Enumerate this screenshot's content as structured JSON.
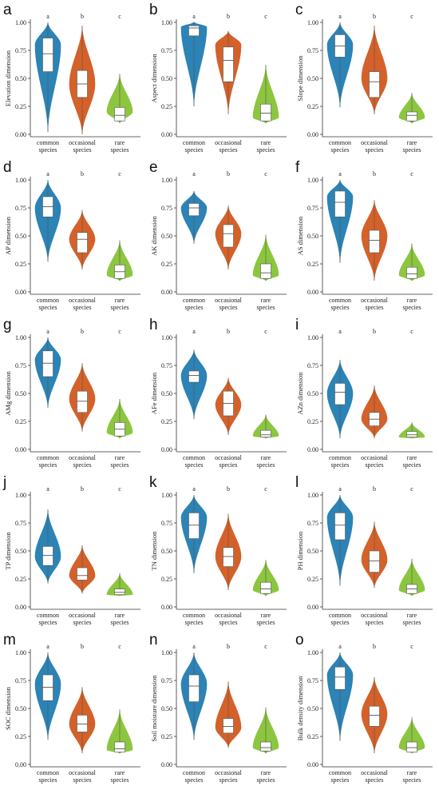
{
  "colors": {
    "common": "#2b83b6",
    "occasional": "#d4612a",
    "rare": "#8cc63f"
  },
  "categories": [
    [
      "common",
      "species"
    ],
    [
      "occasional",
      "species"
    ],
    [
      "rare",
      "species"
    ]
  ],
  "chart_data": [
    {
      "type": "violin",
      "panel": "a",
      "ylabel": "Elevation dimension",
      "yticks": [
        "0.00",
        "0.25",
        "0.50",
        "0.75",
        "1.00"
      ],
      "ylim": [
        0,
        1
      ],
      "significance": [
        "a",
        "b",
        "c"
      ],
      "series": [
        {
          "min": 0.02,
          "q1": 0.56,
          "median": 0.72,
          "q3": 0.86,
          "max": 1.0,
          "mode": 0.8
        },
        {
          "min": 0.0,
          "q1": 0.33,
          "median": 0.45,
          "q3": 0.57,
          "max": 0.97,
          "mode": 0.45
        },
        {
          "min": 0.1,
          "q1": 0.12,
          "median": 0.17,
          "q3": 0.24,
          "max": 0.54,
          "mode": 0.2
        }
      ]
    },
    {
      "type": "violin",
      "panel": "b",
      "ylabel": "Aspect dimension",
      "yticks": [
        "0.00",
        "0.25",
        "0.50",
        "0.75",
        "1.00"
      ],
      "ylim": [
        0,
        1
      ],
      "significance": [
        "a",
        "b",
        "c"
      ],
      "series": [
        {
          "min": 0.25,
          "q1": 0.88,
          "median": 0.95,
          "q3": 0.97,
          "max": 1.0,
          "mode": 0.96
        },
        {
          "min": 0.18,
          "q1": 0.47,
          "median": 0.66,
          "q3": 0.78,
          "max": 0.92,
          "mode": 0.8
        },
        {
          "min": 0.1,
          "q1": 0.12,
          "median": 0.19,
          "q3": 0.27,
          "max": 0.62,
          "mode": 0.15
        }
      ]
    },
    {
      "type": "violin",
      "panel": "c",
      "ylabel": "Slope dimension",
      "yticks": [
        "0.00",
        "0.25",
        "0.50",
        "0.75",
        "1.00"
      ],
      "ylim": [
        0,
        1
      ],
      "significance": [
        "a",
        "b",
        "c"
      ],
      "series": [
        {
          "min": 0.24,
          "q1": 0.69,
          "median": 0.79,
          "q3": 0.89,
          "max": 1.0,
          "mode": 0.8
        },
        {
          "min": 0.18,
          "q1": 0.33,
          "median": 0.47,
          "q3": 0.56,
          "max": 0.97,
          "mode": 0.5
        },
        {
          "min": 0.1,
          "q1": 0.12,
          "median": 0.17,
          "q3": 0.2,
          "max": 0.37,
          "mode": 0.15
        }
      ]
    },
    {
      "type": "violin",
      "panel": "d",
      "ylabel": "AP dimension",
      "yticks": [
        "0.00",
        "0.25",
        "0.50",
        "0.75",
        "1.00"
      ],
      "ylim": [
        0,
        1
      ],
      "significance": [
        "a",
        "b",
        "c"
      ],
      "series": [
        {
          "min": 0.27,
          "q1": 0.67,
          "median": 0.76,
          "q3": 0.85,
          "max": 1.0,
          "mode": 0.75
        },
        {
          "min": 0.2,
          "q1": 0.35,
          "median": 0.47,
          "q3": 0.53,
          "max": 0.73,
          "mode": 0.47
        },
        {
          "min": 0.1,
          "q1": 0.12,
          "median": 0.18,
          "q3": 0.24,
          "max": 0.46,
          "mode": 0.15
        }
      ]
    },
    {
      "type": "violin",
      "panel": "e",
      "ylabel": "AK dimension",
      "yticks": [
        "0.00",
        "0.25",
        "0.50",
        "0.75",
        "1.00"
      ],
      "ylim": [
        0,
        1
      ],
      "significance": [
        "a",
        "b",
        "c"
      ],
      "series": [
        {
          "min": 0.43,
          "q1": 0.68,
          "median": 0.75,
          "q3": 0.79,
          "max": 0.9,
          "mode": 0.75
        },
        {
          "min": 0.2,
          "q1": 0.4,
          "median": 0.52,
          "q3": 0.6,
          "max": 0.77,
          "mode": 0.52
        },
        {
          "min": 0.1,
          "q1": 0.12,
          "median": 0.17,
          "q3": 0.25,
          "max": 0.51,
          "mode": 0.15
        }
      ]
    },
    {
      "type": "violin",
      "panel": "f",
      "ylabel": "AS dimension",
      "yticks": [
        "0.00",
        "0.25",
        "0.50",
        "0.75",
        "1.00"
      ],
      "ylim": [
        0,
        1
      ],
      "significance": [
        "a",
        "b",
        "c"
      ],
      "series": [
        {
          "min": 0.26,
          "q1": 0.67,
          "median": 0.8,
          "q3": 0.9,
          "max": 1.0,
          "mode": 0.85
        },
        {
          "min": 0.1,
          "q1": 0.35,
          "median": 0.46,
          "q3": 0.55,
          "max": 0.82,
          "mode": 0.5
        },
        {
          "min": 0.1,
          "q1": 0.12,
          "median": 0.16,
          "q3": 0.22,
          "max": 0.43,
          "mode": 0.15
        }
      ]
    },
    {
      "type": "violin",
      "panel": "g",
      "ylabel": "AMg dimension",
      "yticks": [
        "0.00",
        "0.25",
        "0.50",
        "0.75",
        "1.00"
      ],
      "ylim": [
        0,
        1
      ],
      "significance": [
        "a",
        "b",
        "c"
      ],
      "series": [
        {
          "min": 0.37,
          "q1": 0.65,
          "median": 0.77,
          "q3": 0.88,
          "max": 1.0,
          "mode": 0.8
        },
        {
          "min": 0.16,
          "q1": 0.33,
          "median": 0.43,
          "q3": 0.52,
          "max": 0.77,
          "mode": 0.45
        },
        {
          "min": 0.1,
          "q1": 0.12,
          "median": 0.18,
          "q3": 0.24,
          "max": 0.45,
          "mode": 0.15
        }
      ]
    },
    {
      "type": "violin",
      "panel": "h",
      "ylabel": "AFe dimension",
      "yticks": [
        "0.00",
        "0.25",
        "0.50",
        "0.75",
        "1.00"
      ],
      "ylim": [
        0,
        1
      ],
      "significance": [
        "a",
        "b",
        "c"
      ],
      "series": [
        {
          "min": 0.27,
          "q1": 0.6,
          "median": 0.66,
          "q3": 0.7,
          "max": 0.89,
          "mode": 0.66
        },
        {
          "min": 0.13,
          "q1": 0.3,
          "median": 0.41,
          "q3": 0.52,
          "max": 0.64,
          "mode": 0.4
        },
        {
          "min": 0.1,
          "q1": 0.11,
          "median": 0.13,
          "q3": 0.17,
          "max": 0.31,
          "mode": 0.12
        }
      ]
    },
    {
      "type": "violin",
      "panel": "i",
      "ylabel": "AZn dimension",
      "yticks": [
        "0.00",
        "0.25",
        "0.50",
        "0.75",
        "1.00"
      ],
      "ylim": [
        0,
        1
      ],
      "significance": [
        "a",
        "b",
        "c"
      ],
      "series": [
        {
          "min": 0.1,
          "q1": 0.4,
          "median": 0.51,
          "q3": 0.59,
          "max": 0.8,
          "mode": 0.5
        },
        {
          "min": 0.1,
          "q1": 0.21,
          "median": 0.27,
          "q3": 0.33,
          "max": 0.57,
          "mode": 0.27
        },
        {
          "min": 0.1,
          "q1": 0.11,
          "median": 0.13,
          "q3": 0.16,
          "max": 0.24,
          "mode": 0.11
        }
      ]
    },
    {
      "type": "violin",
      "panel": "j",
      "ylabel": "TP dimension",
      "yticks": [
        "0.00",
        "0.25",
        "0.50",
        "0.75",
        "1.00"
      ],
      "ylim": [
        0,
        1
      ],
      "significance": [
        "a",
        "b",
        "c"
      ],
      "series": [
        {
          "min": 0.21,
          "q1": 0.37,
          "median": 0.46,
          "q3": 0.54,
          "max": 0.87,
          "mode": 0.45
        },
        {
          "min": 0.12,
          "q1": 0.24,
          "median": 0.28,
          "q3": 0.35,
          "max": 0.55,
          "mode": 0.28
        },
        {
          "min": 0.1,
          "q1": 0.11,
          "median": 0.13,
          "q3": 0.16,
          "max": 0.3,
          "mode": 0.11
        }
      ]
    },
    {
      "type": "violin",
      "panel": "k",
      "ylabel": "TN dimension",
      "yticks": [
        "0.00",
        "0.25",
        "0.50",
        "0.75",
        "1.00"
      ],
      "ylim": [
        0,
        1
      ],
      "significance": [
        "a",
        "b",
        "c"
      ],
      "series": [
        {
          "min": 0.3,
          "q1": 0.61,
          "median": 0.73,
          "q3": 0.84,
          "max": 1.0,
          "mode": 0.8
        },
        {
          "min": 0.15,
          "q1": 0.36,
          "median": 0.45,
          "q3": 0.53,
          "max": 0.83,
          "mode": 0.45
        },
        {
          "min": 0.1,
          "q1": 0.12,
          "median": 0.16,
          "q3": 0.22,
          "max": 0.42,
          "mode": 0.15
        }
      ]
    },
    {
      "type": "violin",
      "panel": "l",
      "ylabel": "PH dimension",
      "yticks": [
        "0.00",
        "0.25",
        "0.50",
        "0.75",
        "1.00"
      ],
      "ylim": [
        0,
        1
      ],
      "significance": [
        "a",
        "b",
        "c"
      ],
      "series": [
        {
          "min": 0.19,
          "q1": 0.6,
          "median": 0.73,
          "q3": 0.84,
          "max": 1.0,
          "mode": 0.8
        },
        {
          "min": 0.17,
          "q1": 0.31,
          "median": 0.41,
          "q3": 0.5,
          "max": 0.76,
          "mode": 0.42
        },
        {
          "min": 0.1,
          "q1": 0.12,
          "median": 0.16,
          "q3": 0.2,
          "max": 0.43,
          "mode": 0.15
        }
      ]
    },
    {
      "type": "violin",
      "panel": "m",
      "ylabel": "SOC dimension",
      "yticks": [
        "0.00",
        "0.25",
        "0.50",
        "0.75",
        "1.00"
      ],
      "ylim": [
        0,
        1
      ],
      "significance": [
        "a",
        "b",
        "c"
      ],
      "series": [
        {
          "min": 0.22,
          "q1": 0.57,
          "median": 0.69,
          "q3": 0.8,
          "max": 1.0,
          "mode": 0.72
        },
        {
          "min": 0.1,
          "q1": 0.29,
          "median": 0.36,
          "q3": 0.44,
          "max": 0.69,
          "mode": 0.36
        },
        {
          "min": 0.1,
          "q1": 0.11,
          "median": 0.14,
          "q3": 0.2,
          "max": 0.49,
          "mode": 0.13
        }
      ]
    },
    {
      "type": "violin",
      "panel": "n",
      "ylabel": "Soil moisture dimension",
      "yticks": [
        "0.00",
        "0.25",
        "0.50",
        "0.75",
        "1.00"
      ],
      "ylim": [
        0,
        1
      ],
      "significance": [
        "a",
        "b",
        "c"
      ],
      "series": [
        {
          "min": 0.22,
          "q1": 0.56,
          "median": 0.7,
          "q3": 0.8,
          "max": 1.0,
          "mode": 0.72
        },
        {
          "min": 0.15,
          "q1": 0.28,
          "median": 0.34,
          "q3": 0.41,
          "max": 0.74,
          "mode": 0.33
        },
        {
          "min": 0.1,
          "q1": 0.12,
          "median": 0.15,
          "q3": 0.2,
          "max": 0.51,
          "mode": 0.15
        }
      ]
    },
    {
      "type": "violin",
      "panel": "o",
      "ylabel": "Bulk density dimension",
      "yticks": [
        "0.00",
        "0.25",
        "0.50",
        "0.75",
        "1.00"
      ],
      "ylim": [
        0,
        1
      ],
      "significance": [
        "a",
        "b",
        "c"
      ],
      "series": [
        {
          "min": 0.21,
          "q1": 0.67,
          "median": 0.78,
          "q3": 0.87,
          "max": 1.0,
          "mode": 0.8
        },
        {
          "min": 0.1,
          "q1": 0.34,
          "median": 0.44,
          "q3": 0.52,
          "max": 0.78,
          "mode": 0.45
        },
        {
          "min": 0.1,
          "q1": 0.11,
          "median": 0.15,
          "q3": 0.2,
          "max": 0.42,
          "mode": 0.15
        }
      ]
    }
  ]
}
